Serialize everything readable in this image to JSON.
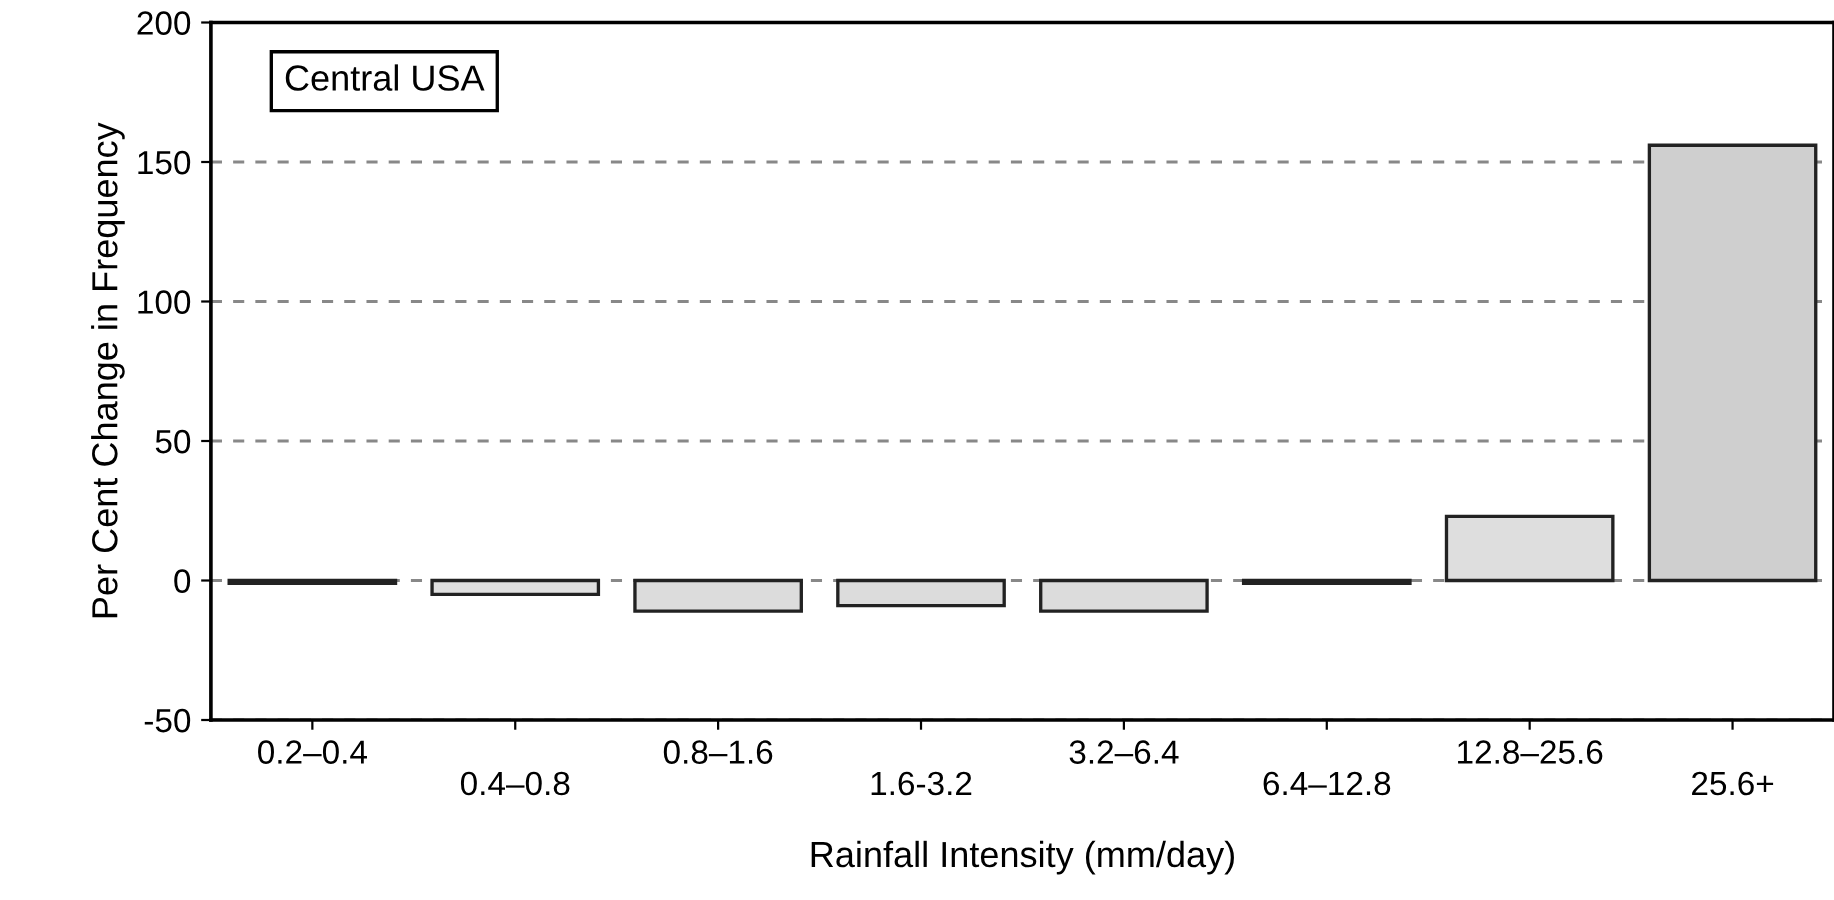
{
  "chart_data": {
    "type": "bar",
    "title": "Central USA",
    "xlabel": "Rainfall Intensity (mm/day)",
    "ylabel": "Per Cent Change in Frequency",
    "categories": [
      "0.2–0.4",
      "0.4–0.8",
      "0.8–1.6",
      "1.6-3.2",
      "3.2–6.4",
      "6.4–12.8",
      "12.8–25.6",
      "25.6+"
    ],
    "values": [
      -1,
      -5,
      -11,
      -9,
      -11,
      -1,
      23,
      156
    ],
    "colors": [
      "#d9d9d9",
      "#e0e0e0",
      "#dcdcdc",
      "#dcdcdc",
      "#dcdcdc",
      "#d9d9d9",
      "#dedede",
      "#cfcfcf"
    ],
    "ylim": [
      -50,
      200
    ],
    "yticks": [
      -50,
      0,
      50,
      100,
      150,
      200
    ],
    "grid": "y",
    "legend": false
  }
}
